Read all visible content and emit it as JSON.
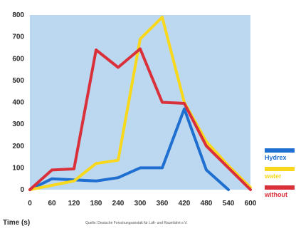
{
  "chart_data": {
    "type": "line",
    "title": "",
    "xlabel": "Time (s)",
    "ylabel": "",
    "x": [
      0,
      60,
      120,
      180,
      240,
      300,
      360,
      420,
      480,
      540,
      600
    ],
    "xlim": [
      0,
      600
    ],
    "ylim": [
      0,
      800
    ],
    "x_ticks": [
      "0",
      "60",
      "120",
      "180",
      "240",
      "300",
      "360",
      "420",
      "480",
      "540",
      "600"
    ],
    "y_ticks": [
      "0",
      "100",
      "200",
      "300",
      "400",
      "500",
      "600",
      "700",
      "800"
    ],
    "grid": false,
    "legend_position": "right",
    "background_color": "#bcd8f0",
    "series": [
      {
        "name": "Hydrex",
        "color": "#1f6fd0",
        "points": [
          [
            0,
            0
          ],
          [
            60,
            50
          ],
          [
            120,
            45
          ],
          [
            180,
            40
          ],
          [
            240,
            55
          ],
          [
            300,
            100
          ],
          [
            360,
            100
          ],
          [
            420,
            370
          ],
          [
            480,
            90
          ],
          [
            540,
            0
          ]
        ]
      },
      {
        "name": "water",
        "color": "#f7d81c",
        "points": [
          [
            0,
            0
          ],
          [
            60,
            20
          ],
          [
            120,
            40
          ],
          [
            180,
            120
          ],
          [
            240,
            135
          ],
          [
            300,
            690
          ],
          [
            360,
            790
          ],
          [
            420,
            400
          ],
          [
            480,
            220
          ],
          [
            540,
            110
          ],
          [
            600,
            10
          ]
        ]
      },
      {
        "name": "without",
        "color": "#d9303a",
        "points": [
          [
            0,
            0
          ],
          [
            60,
            90
          ],
          [
            120,
            95
          ],
          [
            180,
            640
          ],
          [
            240,
            560
          ],
          [
            300,
            645
          ],
          [
            360,
            400
          ],
          [
            420,
            395
          ],
          [
            480,
            200
          ],
          [
            540,
            100
          ],
          [
            600,
            0
          ]
        ]
      }
    ],
    "source": "Quelle: Deutsche Forschungsanstalt für Luft- und Raumfahrt e.V."
  }
}
